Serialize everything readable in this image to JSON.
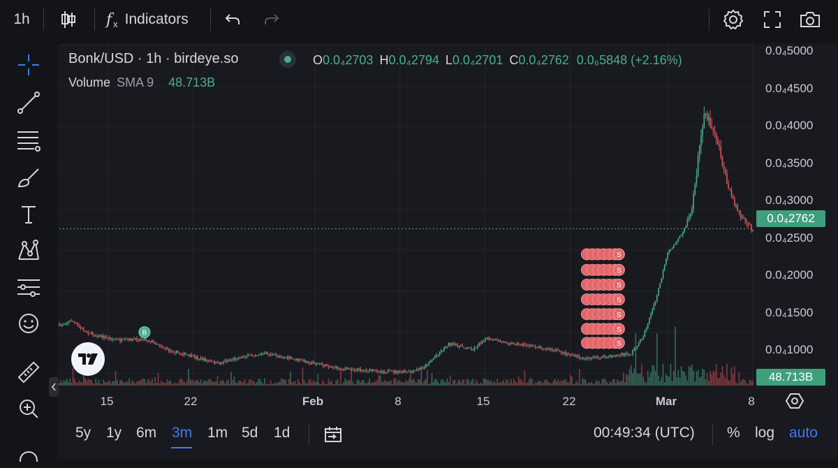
{
  "toolbar": {
    "interval": "1h",
    "indicators_label": "Indicators",
    "fx_glyph": "f",
    "fx_sub": "x"
  },
  "legend": {
    "symbol": "Bonk/USD · 1h · birdeye.so",
    "volume_label": "Volume",
    "sma_label": "SMA 9",
    "volume_value": "48.713B",
    "open_label": "O",
    "open": "0.0₄2703",
    "high_label": "H",
    "high": "0.0₄2794",
    "low_label": "L",
    "low": "0.0₄2701",
    "close_label": "C",
    "close": "0.0₄2762",
    "change": "0.0₆5848 (+2.16%)"
  },
  "colors": {
    "up": "#4caf8a",
    "down": "#e0545a",
    "background": "#181a20",
    "accent": "#3d7cf0"
  },
  "icons": [
    "candles-icon",
    "undo-icon",
    "redo-icon",
    "settings-icon",
    "fullscreen-icon",
    "camera-icon",
    "crosshair-icon",
    "trendline-icon",
    "fib-icon",
    "brush-icon",
    "text-icon",
    "pattern-icon",
    "forecast-icon",
    "emoji-icon",
    "ruler-icon",
    "zoom-in-icon",
    "collapse-icon",
    "tradingview-logo"
  ],
  "price_badge": "0.0₄2762",
  "volume_badge": "48.713B",
  "bottom": {
    "periods": [
      "5y",
      "1y",
      "6m",
      "3m",
      "1m",
      "5d",
      "1d"
    ],
    "active_period": "3m",
    "time": "00:49:34 (UTC)",
    "percent": "%",
    "log": "log",
    "auto": "auto"
  },
  "chart_data": {
    "type": "line",
    "title": "Bonk/USD · 1h · birdeye.so",
    "y_unit_note": "prices shown with subscript notation 0.0₄xxxx",
    "y_tick_labels": [
      "0.0₄5000",
      "0.0₄4500",
      "0.0₄4000",
      "0.0₄3500",
      "0.0₄3000",
      "0.0₄2500",
      "0.0₄2000",
      "0.0₄1500",
      "0.0₄1000"
    ],
    "y_tick_values": [
      5e-05,
      4.5e-05,
      4e-05,
      3.5e-05,
      3e-05,
      2.5e-05,
      2e-05,
      1.5e-05,
      1e-05
    ],
    "x_tick_labels": [
      "15",
      "22",
      "Feb",
      "8",
      "15",
      "22",
      "Mar",
      "8"
    ],
    "x_tick_dates": [
      "2024-01-15",
      "2024-01-22",
      "2024-02-01",
      "2024-02-08",
      "2024-02-15",
      "2024-02-22",
      "2024-03-01",
      "2024-03-08"
    ],
    "ylim": [
      8.5e-06,
      5.02e-05
    ],
    "xlim": [
      "2024-01-11",
      "2024-03-08"
    ],
    "series": [
      {
        "x": [
          "2024-01-11",
          "2024-01-12",
          "2024-01-13",
          "2024-01-14",
          "2024-01-16",
          "2024-01-18",
          "2024-01-19",
          "2024-01-20",
          "2024-01-22",
          "2024-01-24",
          "2024-01-26",
          "2024-01-28",
          "2024-01-30",
          "2024-02-01",
          "2024-02-03",
          "2024-02-05",
          "2024-02-07",
          "2024-02-09",
          "2024-02-10",
          "2024-02-12",
          "2024-02-14",
          "2024-02-15",
          "2024-02-17",
          "2024-02-19",
          "2024-02-21",
          "2024-02-23",
          "2024-02-25",
          "2024-02-27",
          "2024-02-28",
          "2024-02-29",
          "2024-03-01",
          "2024-03-02",
          "2024-03-03",
          "2024-03-04",
          "2024-03-05",
          "2024-03-06",
          "2024-03-07",
          "2024-03-08"
        ],
        "values": [
          1.58e-05,
          1.64e-05,
          1.52e-05,
          1.46e-05,
          1.4e-05,
          1.42e-05,
          1.36e-05,
          1.28e-05,
          1.2e-05,
          1.12e-05,
          1.2e-05,
          1.24e-05,
          1.18e-05,
          1.12e-05,
          1.06e-05,
          1.04e-05,
          1.02e-05,
          1.01e-05,
          1.08e-05,
          1.36e-05,
          1.29e-05,
          1.42e-05,
          1.37e-05,
          1.33e-05,
          1.27e-05,
          1.18e-05,
          1.2e-05,
          1.24e-05,
          1.45e-05,
          1.88e-05,
          2.46e-05,
          2.66e-05,
          3e-05,
          4.2e-05,
          3.9e-05,
          3.25e-05,
          2.9e-05,
          2.76e-05
        ]
      }
    ],
    "last_price_label": "0.0₄2762",
    "volume_last_label": "48.713B",
    "grid": true,
    "markers": [
      {
        "label": "B",
        "date": "2024-01-18",
        "value": 1.5e-05
      },
      {
        "label": "S",
        "date": "2024-02-26",
        "value": 2.45e-05
      },
      {
        "label": "S",
        "date": "2024-02-26",
        "value": 2.26e-05
      },
      {
        "label": "S",
        "date": "2024-02-26",
        "value": 2.08e-05
      },
      {
        "label": "S",
        "date": "2024-02-26",
        "value": 1.9e-05
      },
      {
        "label": "S",
        "date": "2024-02-26",
        "value": 1.72e-05
      },
      {
        "label": "S",
        "date": "2024-02-26",
        "value": 1.54e-05
      },
      {
        "label": "S",
        "date": "2024-02-26",
        "value": 1.37e-05
      }
    ]
  }
}
